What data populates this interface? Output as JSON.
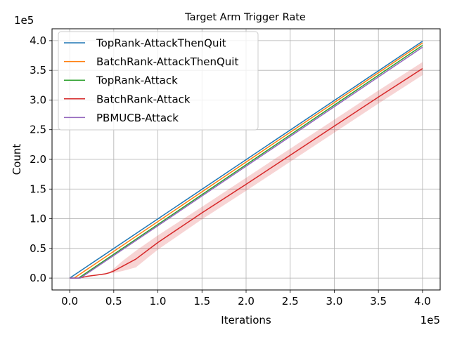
{
  "chart_data": {
    "type": "line",
    "title": "Target Arm Trigger Rate",
    "xlabel": "Iterations",
    "ylabel": "Count",
    "x_offset_text": "1e5",
    "y_offset_text": "1e5",
    "xlim": [
      -0.2,
      4.2
    ],
    "ylim": [
      -0.2,
      4.2
    ],
    "xticks": [
      0.0,
      0.5,
      1.0,
      1.5,
      2.0,
      2.5,
      3.0,
      3.5,
      4.0
    ],
    "yticks": [
      0.0,
      0.5,
      1.0,
      1.5,
      2.0,
      2.5,
      3.0,
      3.5,
      4.0
    ],
    "xtick_labels": [
      "0.0",
      "0.5",
      "1.0",
      "1.5",
      "2.0",
      "2.5",
      "3.0",
      "3.5",
      "4.0"
    ],
    "ytick_labels": [
      "0.0",
      "0.5",
      "1.0",
      "1.5",
      "2.0",
      "2.5",
      "3.0",
      "3.5",
      "4.0"
    ],
    "grid": true,
    "legend_position": "top-left",
    "series": [
      {
        "name": "TopRank-AttackThenQuit",
        "color": "#1f77b4",
        "x": [
          0.0,
          4.0
        ],
        "y": [
          0.0,
          3.99
        ]
      },
      {
        "name": "BatchRank-AttackThenQuit",
        "color": "#ff7f0e",
        "x": [
          0.0,
          0.05,
          4.0
        ],
        "y": [
          0.0,
          0.0,
          3.96
        ]
      },
      {
        "name": "TopRank-Attack",
        "color": "#2ca02c",
        "x": [
          0.0,
          0.1,
          4.0
        ],
        "y": [
          0.0,
          0.0,
          3.92
        ]
      },
      {
        "name": "BatchRank-Attack",
        "color": "#d62728",
        "x": [
          0.0,
          0.1,
          0.2,
          0.3,
          0.4,
          0.45,
          0.5,
          0.6,
          0.75,
          1.0,
          1.5,
          2.0,
          2.5,
          3.0,
          3.5,
          4.0
        ],
        "y": [
          0.0,
          0.0,
          0.03,
          0.05,
          0.07,
          0.09,
          0.12,
          0.2,
          0.32,
          0.6,
          1.1,
          1.58,
          2.07,
          2.56,
          3.05,
          3.53
        ],
        "band_lower": [
          0.0,
          0.0,
          0.03,
          0.05,
          0.07,
          0.08,
          0.09,
          0.12,
          0.18,
          0.48,
          0.99,
          1.47,
          1.96,
          2.45,
          2.94,
          3.42
        ],
        "band_upper": [
          0.0,
          0.0,
          0.03,
          0.05,
          0.07,
          0.1,
          0.16,
          0.29,
          0.46,
          0.72,
          1.2,
          1.69,
          2.18,
          2.67,
          3.16,
          3.64
        ]
      },
      {
        "name": "PBMUCB-Attack",
        "color": "#9467bd",
        "x": [
          0.0,
          0.12,
          4.0
        ],
        "y": [
          0.0,
          0.0,
          3.89
        ]
      }
    ]
  }
}
